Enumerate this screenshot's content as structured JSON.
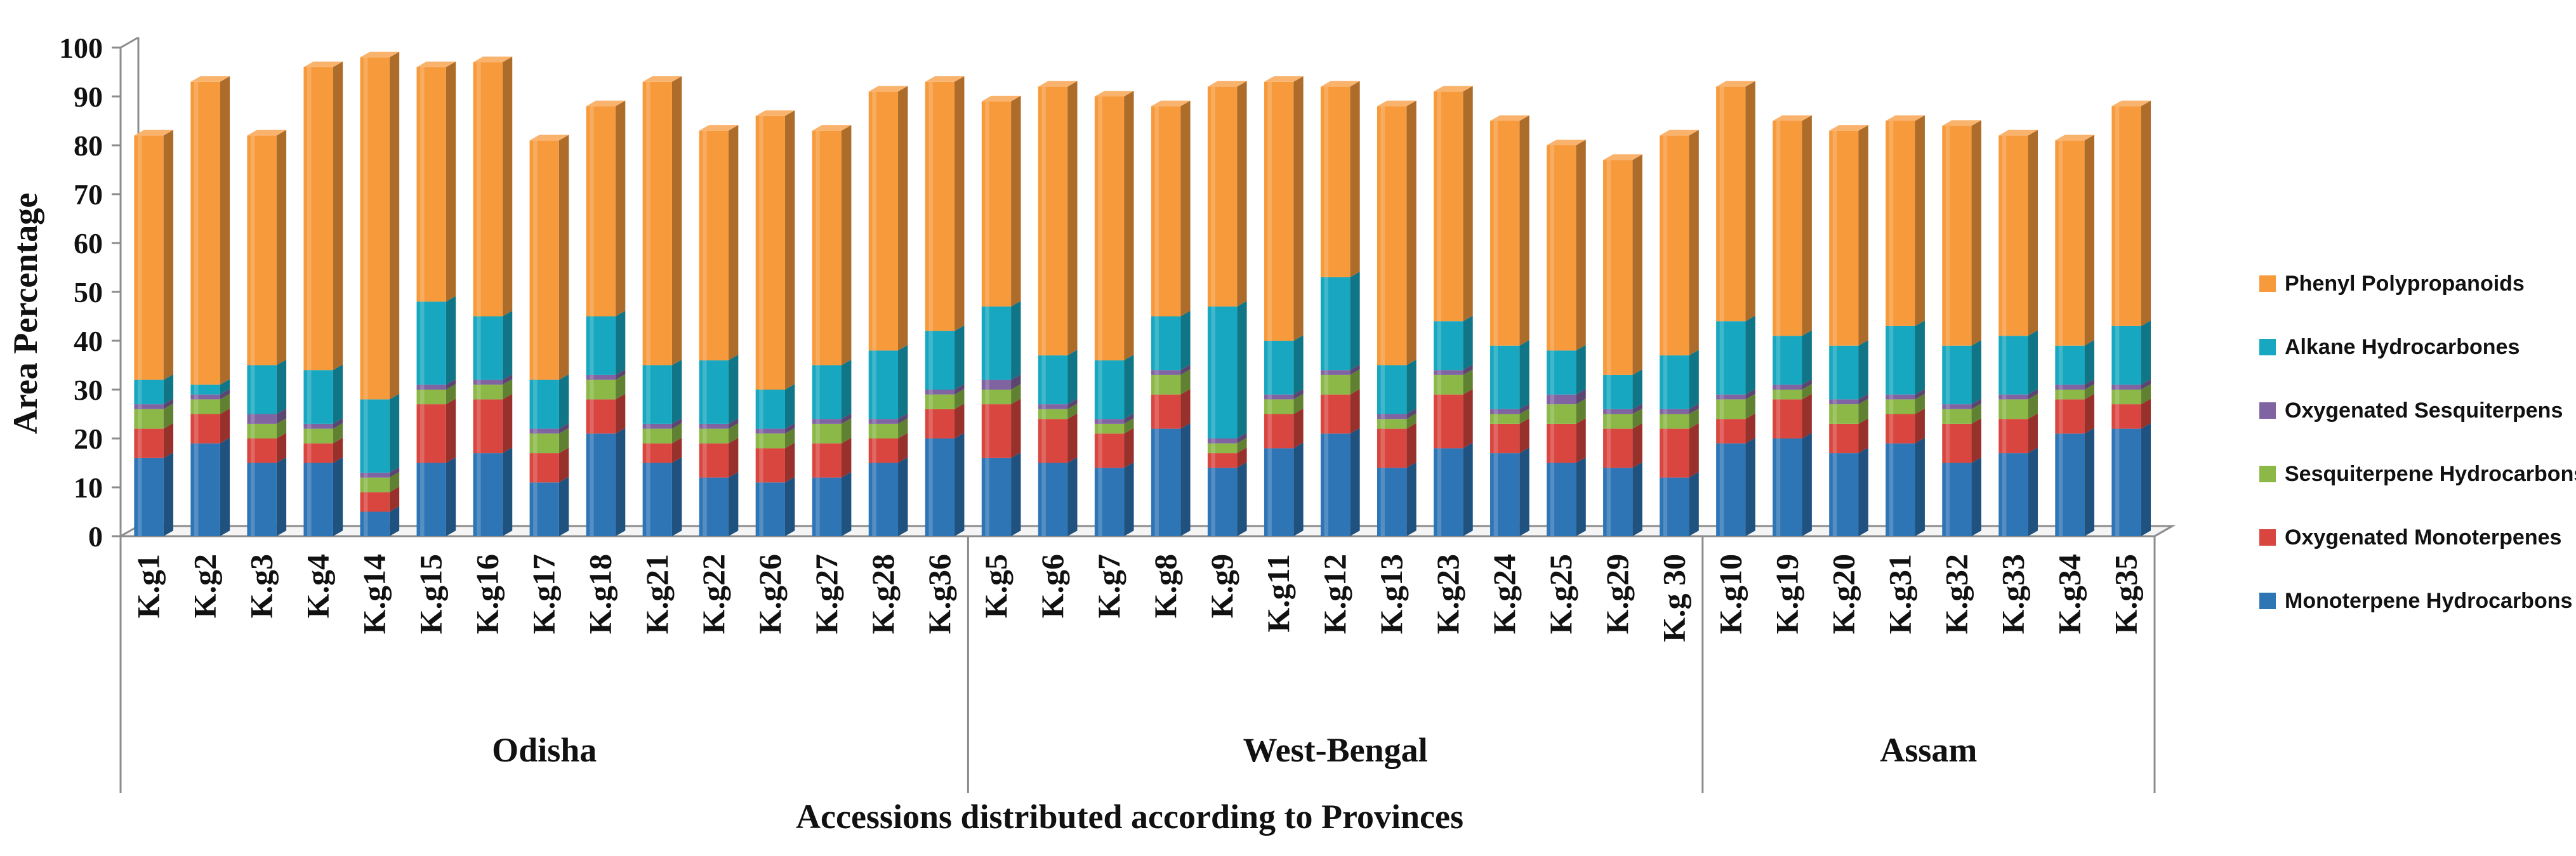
{
  "chart_data": {
    "type": "bar",
    "stacked": true,
    "title": "",
    "xlabel": "Accessions distributed according to Provinces",
    "ylabel": "Area Percentage",
    "ylim": [
      0,
      100
    ],
    "yticks": [
      0,
      10,
      20,
      30,
      40,
      50,
      60,
      70,
      80,
      90,
      100
    ],
    "grid": false,
    "legend_position": "right",
    "colors": {
      "Monoterpene Hydrocarbons": "#2e75b6",
      "Oxygenated Monoterpenes": "#d9463f",
      "Sesquiterpene Hydrocarbons": "#8bb847",
      "Oxygenated Sesquiterpens": "#8064a2",
      "Alkane Hydrocarbones": "#17a7c0",
      "Phenyl Polypropanoids": "#f79a3c"
    },
    "groups": [
      {
        "name": "Odisha",
        "start": 0,
        "count": 15
      },
      {
        "name": "West-Bengal",
        "start": 15,
        "count": 13
      },
      {
        "name": "Assam",
        "start": 28,
        "count": 8
      }
    ],
    "categories": [
      "K.g1",
      "K.g2",
      "K.g3",
      "K.g4",
      "K.g14",
      "K.g15",
      "K.g16",
      "K.g17",
      "K.g18",
      "K.g21",
      "K.g22",
      "K.g26",
      "K.g27",
      "K.g28",
      "K.g36",
      "K.g5",
      "K.g6",
      "K.g7",
      "K.g8",
      "K.g9",
      "K.g11",
      "K.g12",
      "K.g13",
      "K.g23",
      "K.g24",
      "K.g25",
      "K.g29",
      "K.g 30",
      "K.g10",
      "K.g19",
      "K.g20",
      "K.g31",
      "K.g32",
      "K.g33",
      "K.g34",
      "K.g35"
    ],
    "series": [
      {
        "name": "Monoterpene Hydrocarbons",
        "values": [
          16,
          19,
          15,
          15,
          5,
          15,
          17,
          11,
          21,
          15,
          12,
          11,
          12,
          15,
          20,
          16,
          15,
          14,
          22,
          14,
          18,
          21,
          14,
          18,
          17,
          15,
          14,
          12,
          19,
          20,
          17,
          19,
          15,
          17,
          21,
          22
        ]
      },
      {
        "name": "Oxygenated Monoterpenes",
        "values": [
          6,
          6,
          5,
          4,
          4,
          12,
          11,
          6,
          7,
          4,
          7,
          7,
          7,
          5,
          6,
          11,
          9,
          7,
          7,
          3,
          7,
          8,
          8,
          11,
          6,
          8,
          8,
          10,
          5,
          8,
          6,
          6,
          8,
          7,
          7,
          5
        ]
      },
      {
        "name": "Sesquiterpene Hydrocarbons",
        "values": [
          4,
          3,
          3,
          3,
          3,
          3,
          3,
          4,
          4,
          3,
          3,
          3,
          4,
          3,
          3,
          3,
          2,
          2,
          4,
          2,
          3,
          4,
          2,
          4,
          2,
          4,
          3,
          3,
          4,
          2,
          4,
          3,
          3,
          4,
          2,
          3
        ]
      },
      {
        "name": "Oxygenated Sesquiterpens",
        "values": [
          1,
          1,
          2,
          1,
          1,
          1,
          1,
          1,
          1,
          1,
          1,
          1,
          1,
          1,
          1,
          2,
          1,
          1,
          1,
          1,
          1,
          1,
          1,
          1,
          1,
          2,
          1,
          1,
          1,
          1,
          1,
          1,
          1,
          1,
          1,
          1
        ]
      },
      {
        "name": "Alkane Hydrocarbones",
        "values": [
          5,
          2,
          10,
          11,
          15,
          17,
          13,
          10,
          12,
          12,
          13,
          8,
          11,
          14,
          12,
          15,
          10,
          12,
          11,
          27,
          11,
          19,
          10,
          10,
          13,
          9,
          7,
          11,
          15,
          10,
          11,
          14,
          12,
          12,
          8,
          12
        ]
      },
      {
        "name": "Phenyl Polypropanoids",
        "values": [
          50,
          62,
          47,
          62,
          70,
          48,
          52,
          49,
          43,
          58,
          47,
          56,
          48,
          53,
          51,
          42,
          55,
          54,
          43,
          45,
          53,
          39,
          53,
          47,
          46,
          42,
          44,
          45,
          48,
          44,
          44,
          42,
          45,
          41,
          42,
          45
        ]
      }
    ]
  }
}
